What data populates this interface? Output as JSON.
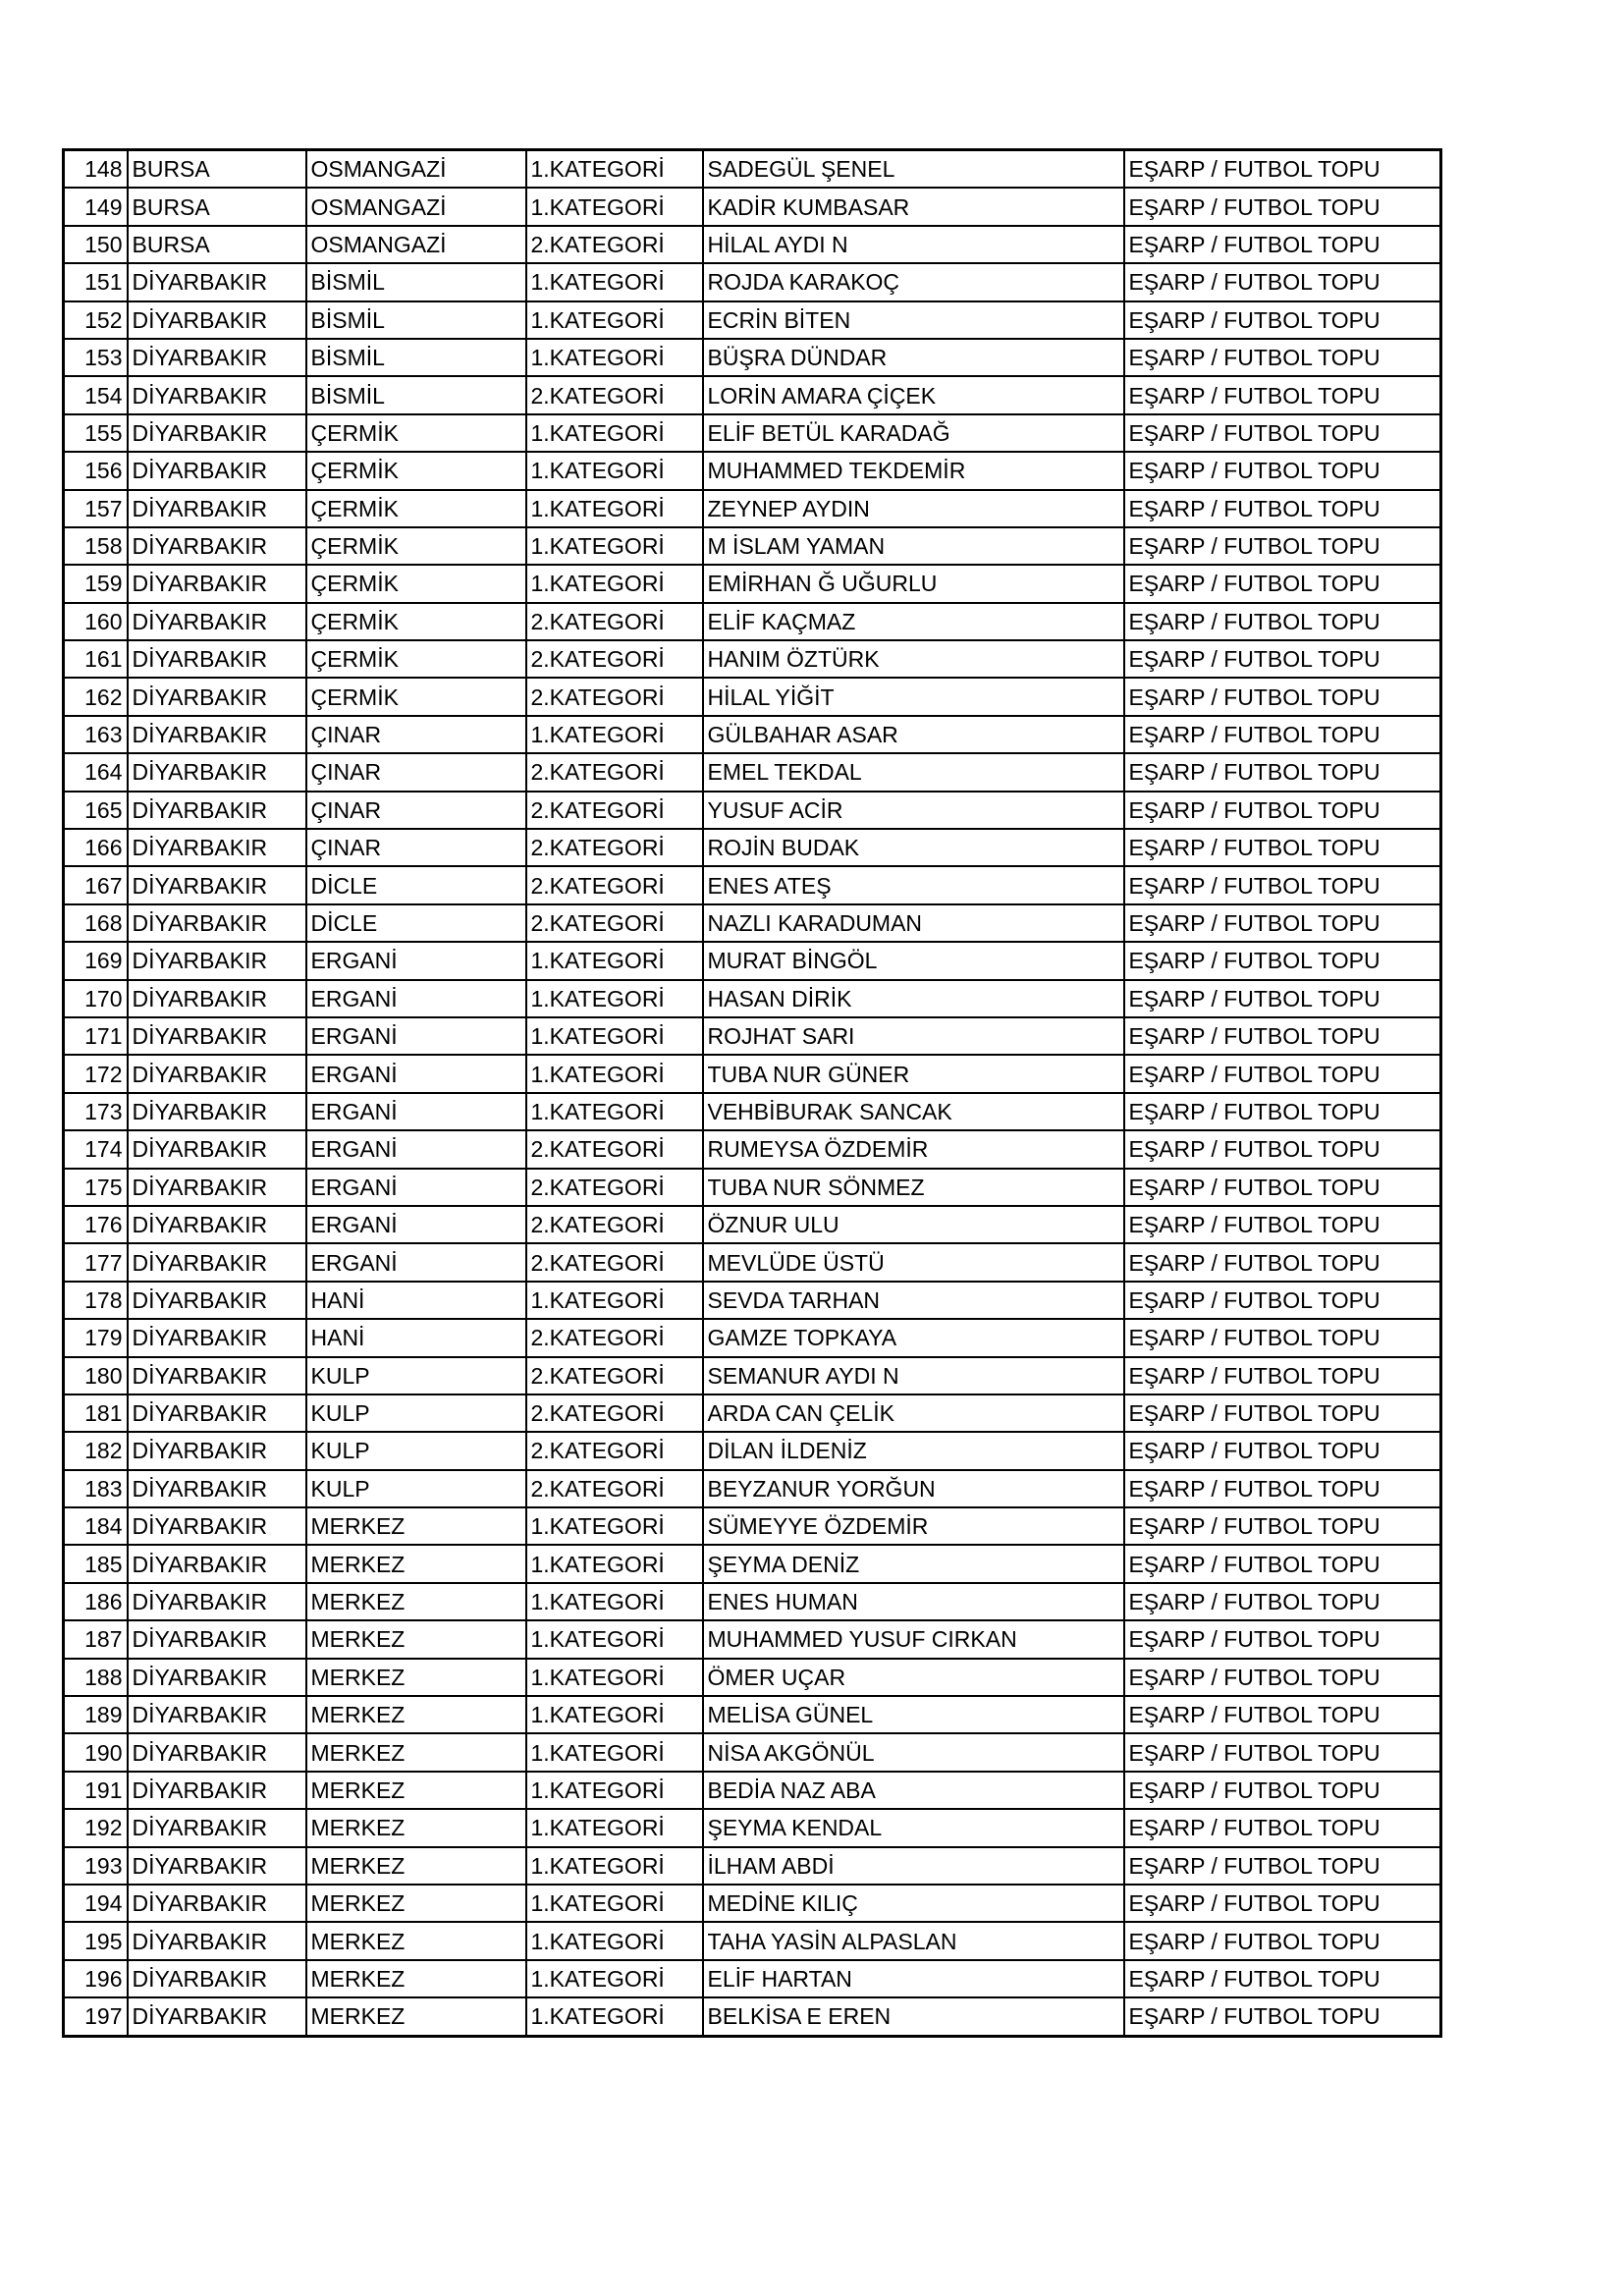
{
  "rows": [
    [
      "148",
      "BURSA",
      "OSMANGAZİ",
      "1.KATEGORİ",
      "SADEGÜL ŞENEL",
      "EŞARP / FUTBOL TOPU"
    ],
    [
      "149",
      "BURSA",
      "OSMANGAZİ",
      "1.KATEGORİ",
      "KADİR KUMBASAR",
      "EŞARP / FUTBOL TOPU"
    ],
    [
      "150",
      "BURSA",
      "OSMANGAZİ",
      "2.KATEGORİ",
      "HİLAL AYDI N",
      "EŞARP / FUTBOL TOPU"
    ],
    [
      "151",
      "DİYARBAKIR",
      "BİSMİL",
      "1.KATEGORİ",
      "ROJDA KARAKOÇ",
      "EŞARP / FUTBOL TOPU"
    ],
    [
      "152",
      "DİYARBAKIR",
      "BİSMİL",
      "1.KATEGORİ",
      "ECRİN BİTEN",
      "EŞARP / FUTBOL TOPU"
    ],
    [
      "153",
      "DİYARBAKIR",
      "BİSMİL",
      "1.KATEGORİ",
      "BÜŞRA DÜNDAR",
      "EŞARP / FUTBOL TOPU"
    ],
    [
      "154",
      "DİYARBAKIR",
      "BİSMİL",
      "2.KATEGORİ",
      "LORİN AMARA ÇİÇEK",
      "EŞARP / FUTBOL TOPU"
    ],
    [
      "155",
      "DİYARBAKIR",
      "ÇERMİK",
      "1.KATEGORİ",
      "ELİF BETÜL KARADAĞ",
      "EŞARP / FUTBOL TOPU"
    ],
    [
      "156",
      "DİYARBAKIR",
      "ÇERMİK",
      "1.KATEGORİ",
      "MUHAMMED TEKDEMİR",
      "EŞARP / FUTBOL TOPU"
    ],
    [
      "157",
      "DİYARBAKIR",
      "ÇERMİK",
      "1.KATEGORİ",
      "ZEYNEP AYDIN",
      "EŞARP / FUTBOL TOPU"
    ],
    [
      "158",
      "DİYARBAKIR",
      "ÇERMİK",
      "1.KATEGORİ",
      "M İSLAM YAMAN",
      "EŞARP / FUTBOL TOPU"
    ],
    [
      "159",
      "DİYARBAKIR",
      "ÇERMİK",
      "1.KATEGORİ",
      "EMİRHAN Ğ UĞURLU",
      "EŞARP / FUTBOL TOPU"
    ],
    [
      "160",
      "DİYARBAKIR",
      "ÇERMİK",
      "2.KATEGORİ",
      "ELİF KAÇMAZ",
      "EŞARP / FUTBOL TOPU"
    ],
    [
      "161",
      "DİYARBAKIR",
      "ÇERMİK",
      "2.KATEGORİ",
      "HANIM ÖZTÜRK",
      "EŞARP / FUTBOL TOPU"
    ],
    [
      "162",
      "DİYARBAKIR",
      "ÇERMİK",
      "2.KATEGORİ",
      "HİLAL YİĞİT",
      "EŞARP / FUTBOL TOPU"
    ],
    [
      "163",
      "DİYARBAKIR",
      "ÇINAR",
      "1.KATEGORİ",
      "GÜLBAHAR ASAR",
      "EŞARP / FUTBOL TOPU"
    ],
    [
      "164",
      "DİYARBAKIR",
      "ÇINAR",
      "2.KATEGORİ",
      "EMEL TEKDAL",
      "EŞARP / FUTBOL TOPU"
    ],
    [
      "165",
      "DİYARBAKIR",
      "ÇINAR",
      "2.KATEGORİ",
      "YUSUF ACİR",
      "EŞARP / FUTBOL TOPU"
    ],
    [
      "166",
      "DİYARBAKIR",
      "ÇINAR",
      "2.KATEGORİ",
      "ROJİN BUDAK",
      "EŞARP / FUTBOL TOPU"
    ],
    [
      "167",
      "DİYARBAKIR",
      "DİCLE",
      "2.KATEGORİ",
      "ENES ATEŞ",
      "EŞARP / FUTBOL TOPU"
    ],
    [
      "168",
      "DİYARBAKIR",
      "DİCLE",
      "2.KATEGORİ",
      "NAZLI KARADUMAN",
      "EŞARP / FUTBOL TOPU"
    ],
    [
      "169",
      "DİYARBAKIR",
      "ERGANİ",
      "1.KATEGORİ",
      "MURAT BİNGÖL",
      "EŞARP / FUTBOL TOPU"
    ],
    [
      "170",
      "DİYARBAKIR",
      "ERGANİ",
      "1.KATEGORİ",
      "HASAN DİRİK",
      "EŞARP / FUTBOL TOPU"
    ],
    [
      "171",
      "DİYARBAKIR",
      "ERGANİ",
      "1.KATEGORİ",
      "ROJHAT SARI",
      "EŞARP / FUTBOL TOPU"
    ],
    [
      "172",
      "DİYARBAKIR",
      "ERGANİ",
      "1.KATEGORİ",
      "TUBA NUR GÜNER",
      "EŞARP / FUTBOL TOPU"
    ],
    [
      "173",
      "DİYARBAKIR",
      "ERGANİ",
      "1.KATEGORİ",
      "VEHBİBURAK SANCAK",
      "EŞARP / FUTBOL TOPU"
    ],
    [
      "174",
      "DİYARBAKIR",
      "ERGANİ",
      "2.KATEGORİ",
      "RUMEYSA ÖZDEMİR",
      "EŞARP / FUTBOL TOPU"
    ],
    [
      "175",
      "DİYARBAKIR",
      "ERGANİ",
      "2.KATEGORİ",
      "TUBA NUR SÖNMEZ",
      "EŞARP / FUTBOL TOPU"
    ],
    [
      "176",
      "DİYARBAKIR",
      "ERGANİ",
      "2.KATEGORİ",
      "ÖZNUR ULU",
      "EŞARP / FUTBOL TOPU"
    ],
    [
      "177",
      "DİYARBAKIR",
      "ERGANİ",
      "2.KATEGORİ",
      "MEVLÜDE ÜSTÜ",
      "EŞARP / FUTBOL TOPU"
    ],
    [
      "178",
      "DİYARBAKIR",
      "HANİ",
      "1.KATEGORİ",
      "SEVDA TARHAN",
      "EŞARP / FUTBOL TOPU"
    ],
    [
      "179",
      "DİYARBAKIR",
      "HANİ",
      "2.KATEGORİ",
      "GAMZE TOPKAYA",
      "EŞARP / FUTBOL TOPU"
    ],
    [
      "180",
      "DİYARBAKIR",
      "KULP",
      "2.KATEGORİ",
      "SEMANUR AYDI N",
      "EŞARP / FUTBOL TOPU"
    ],
    [
      "181",
      "DİYARBAKIR",
      "KULP",
      "2.KATEGORİ",
      "ARDA CAN ÇELİK",
      "EŞARP / FUTBOL TOPU"
    ],
    [
      "182",
      "DİYARBAKIR",
      "KULP",
      "2.KATEGORİ",
      "DİLAN İLDENİZ",
      "EŞARP / FUTBOL TOPU"
    ],
    [
      "183",
      "DİYARBAKIR",
      "KULP",
      "2.KATEGORİ",
      "BEYZANUR YORĞUN",
      "EŞARP / FUTBOL TOPU"
    ],
    [
      "184",
      "DİYARBAKIR",
      "MERKEZ",
      "1.KATEGORİ",
      "SÜMEYYE ÖZDEMİR",
      "EŞARP / FUTBOL TOPU"
    ],
    [
      "185",
      "DİYARBAKIR",
      "MERKEZ",
      "1.KATEGORİ",
      "ŞEYMA DENİZ",
      "EŞARP / FUTBOL TOPU"
    ],
    [
      "186",
      "DİYARBAKIR",
      "MERKEZ",
      "1.KATEGORİ",
      "ENES HUMAN",
      "EŞARP / FUTBOL TOPU"
    ],
    [
      "187",
      "DİYARBAKIR",
      "MERKEZ",
      "1.KATEGORİ",
      "MUHAMMED YUSUF CIRKAN",
      "EŞARP / FUTBOL TOPU"
    ],
    [
      "188",
      "DİYARBAKIR",
      "MERKEZ",
      "1.KATEGORİ",
      "ÖMER UÇAR",
      "EŞARP / FUTBOL TOPU"
    ],
    [
      "189",
      "DİYARBAKIR",
      "MERKEZ",
      "1.KATEGORİ",
      "MELİSA GÜNEL",
      "EŞARP / FUTBOL TOPU"
    ],
    [
      "190",
      "DİYARBAKIR",
      "MERKEZ",
      "1.KATEGORİ",
      "NİSA AKGÖNÜL",
      "EŞARP / FUTBOL TOPU"
    ],
    [
      "191",
      "DİYARBAKIR",
      "MERKEZ",
      "1.KATEGORİ",
      "BEDİA NAZ ABA",
      "EŞARP / FUTBOL TOPU"
    ],
    [
      "192",
      "DİYARBAKIR",
      "MERKEZ",
      "1.KATEGORİ",
      "ŞEYMA KENDAL",
      "EŞARP / FUTBOL TOPU"
    ],
    [
      "193",
      "DİYARBAKIR",
      "MERKEZ",
      "1.KATEGORİ",
      "İLHAM ABDİ",
      "EŞARP / FUTBOL TOPU"
    ],
    [
      "194",
      "DİYARBAKIR",
      "MERKEZ",
      "1.KATEGORİ",
      "MEDİNE KILIÇ",
      "EŞARP / FUTBOL TOPU"
    ],
    [
      "195",
      "DİYARBAKIR",
      "MERKEZ",
      "1.KATEGORİ",
      "TAHA YASİN ALPASLAN",
      "EŞARP / FUTBOL TOPU"
    ],
    [
      "196",
      "DİYARBAKIR",
      "MERKEZ",
      "1.KATEGORİ",
      "ELİF HARTAN",
      "EŞARP / FUTBOL TOPU"
    ],
    [
      "197",
      "DİYARBAKIR",
      "MERKEZ",
      "1.KATEGORİ",
      "BELKİSA E EREN",
      "EŞARP / FUTBOL TOPU"
    ]
  ]
}
